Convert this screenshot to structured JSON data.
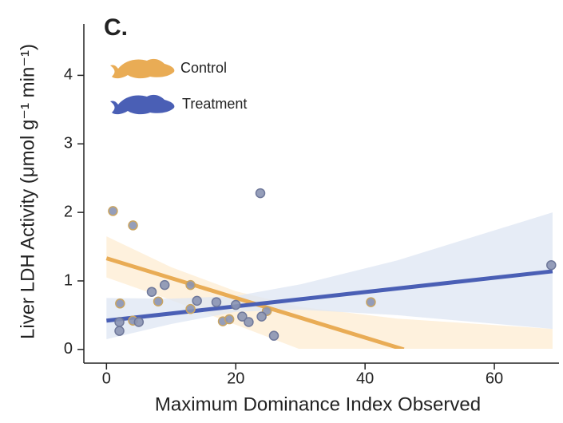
{
  "chart_data": {
    "type": "scatter",
    "panel_label": "C.",
    "x_label": "Maximum Dominance Index Observed",
    "y_label": "Liver LDH Activity (μmol g⁻¹ min⁻¹)",
    "xlim": [
      -3.5,
      70
    ],
    "ylim": [
      -0.2,
      4.75
    ],
    "xticks": [
      0,
      20,
      40,
      60
    ],
    "yticks": [
      0,
      1,
      2,
      3,
      4
    ],
    "series": [
      {
        "name": "Control",
        "color": "#e9ac55",
        "band_color": "#fdecd2",
        "x": [
          1,
          4.1,
          2.1,
          8,
          13,
          13,
          18,
          19,
          24.8,
          40.9,
          4.1
        ],
        "values": [
          2.02,
          1.81,
          0.67,
          0.7,
          0.94,
          0.59,
          0.41,
          0.44,
          0.56,
          0.69,
          0.42
        ],
        "fit": {
          "x": [
            0,
            46
          ],
          "values": [
            1.33,
            0
          ]
        },
        "band": {
          "x": [
            0,
            10,
            20,
            30,
            45,
            69
          ],
          "upper": [
            1.65,
            1.2,
            0.85,
            0.62,
            0.45,
            0.3
          ],
          "lower": [
            1.05,
            0.72,
            0.36,
            0,
            0,
            0
          ]
        }
      },
      {
        "name": "Treatment",
        "color": "#4a5fb5",
        "band_color": "#dde5f3",
        "x": [
          2,
          2,
          5,
          7,
          9,
          14,
          17,
          20,
          21,
          22,
          24,
          23.8,
          25.9,
          68.8
        ],
        "values": [
          0.4,
          0.27,
          0.4,
          0.84,
          0.94,
          0.71,
          0.69,
          0.65,
          0.48,
          0.4,
          0.48,
          2.28,
          0.2,
          1.23
        ],
        "fit": {
          "x": [
            0,
            69
          ],
          "values": [
            0.42,
            1.14
          ]
        },
        "band": {
          "x": [
            0,
            10,
            20,
            30,
            45,
            69
          ],
          "upper": [
            0.75,
            0.74,
            0.78,
            0.95,
            1.3,
            2.0
          ],
          "lower": [
            0.15,
            0.37,
            0.55,
            0.58,
            0.5,
            0.3
          ]
        }
      }
    ]
  }
}
